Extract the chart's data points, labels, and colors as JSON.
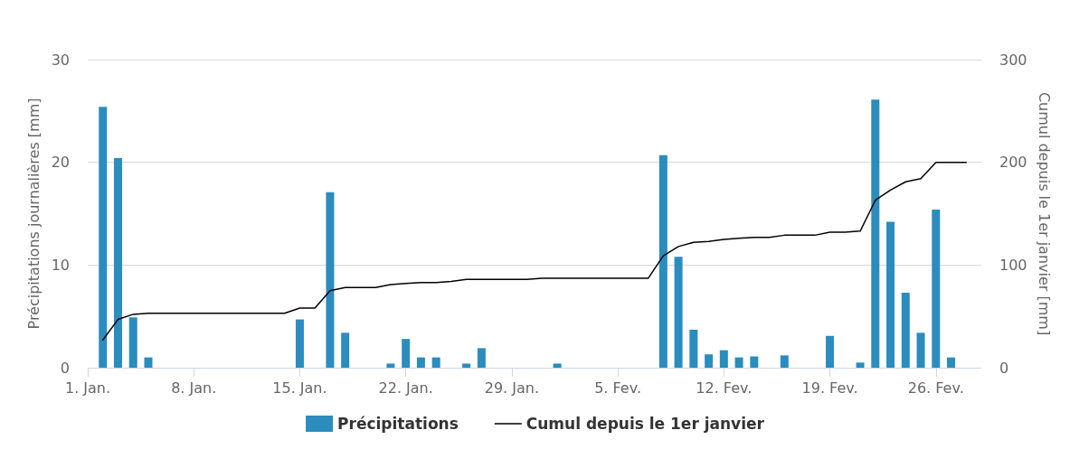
{
  "chart_data": {
    "type": "bar",
    "ylabel": "Précipitations journalières [mm]",
    "y2label": "Cumul depuis le 1er janvier [mm]",
    "xlim": [
      "--01-01",
      "--03-01"
    ],
    "xticks": [
      {
        "value": "--01-01",
        "label": "1. Jan."
      },
      {
        "value": "--01-08",
        "label": "8. Jan."
      },
      {
        "value": "--01-15",
        "label": "15. Jan."
      },
      {
        "value": "--01-22",
        "label": "22. Jan."
      },
      {
        "value": "--01-29",
        "label": "29. Jan."
      },
      {
        "value": "--02-05",
        "label": "5. Fev."
      },
      {
        "value": "--02-12",
        "label": "12. Fev."
      },
      {
        "value": "--02-19",
        "label": "19. Fev."
      },
      {
        "value": "--02-26",
        "label": "26. Fev."
      }
    ],
    "ylim": [
      0,
      30
    ],
    "yticks": [
      0,
      10,
      20,
      30
    ],
    "y2lim": [
      0,
      300
    ],
    "y2ticks": [
      0,
      100,
      200,
      300
    ],
    "grid": "y",
    "legend": "bottom",
    "x": [
      "--01-02",
      "--01-03",
      "--01-04",
      "--01-05",
      "--01-06",
      "--01-07",
      "--01-08",
      "--01-09",
      "--01-10",
      "--01-11",
      "--01-12",
      "--01-13",
      "--01-14",
      "--01-15",
      "--01-16",
      "--01-17",
      "--01-18",
      "--01-19",
      "--01-20",
      "--01-21",
      "--01-22",
      "--01-23",
      "--01-24",
      "--01-25",
      "--01-26",
      "--01-27",
      "--01-28",
      "--01-29",
      "--01-30",
      "--01-31",
      "--02-01",
      "--02-02",
      "--02-03",
      "--02-04",
      "--02-05",
      "--02-06",
      "--02-07",
      "--02-08",
      "--02-09",
      "--02-10",
      "--02-11",
      "--02-12",
      "--02-13",
      "--02-14",
      "--02-15",
      "--02-16",
      "--02-17",
      "--02-18",
      "--02-19",
      "--02-20",
      "--02-21",
      "--02-22",
      "--02-23",
      "--02-24",
      "--02-25",
      "--02-26",
      "--02-27",
      "--02-28"
    ],
    "series": [
      {
        "name": "Précipitations",
        "color": "#2b8cbe",
        "x": [
          "--01-02",
          "--01-03",
          "--01-04",
          "--01-05",
          "--01-15",
          "--01-17",
          "--01-18",
          "--01-21",
          "--01-22",
          "--01-23",
          "--01-24",
          "--01-26",
          "--01-27",
          "--02-01",
          "--02-08",
          "--02-09",
          "--02-10",
          "--02-11",
          "--02-12",
          "--02-13",
          "--02-14",
          "--02-16",
          "--02-19",
          "--02-21",
          "--02-22",
          "--02-23",
          "--02-24",
          "--02-25",
          "--02-26",
          "--02-27"
        ],
        "values": [
          25.4,
          20.4,
          4.9,
          1.0,
          4.7,
          17.1,
          3.4,
          0.4,
          2.8,
          1.0,
          1.0,
          0.4,
          1.9,
          0.4,
          20.7,
          10.8,
          3.7,
          1.3,
          1.7,
          1.0,
          1.1,
          1.2,
          3.1,
          0.5,
          26.1,
          14.2,
          7.3,
          3.4,
          15.4,
          1.0
        ]
      },
      {
        "name": "Cumul depuis le 1er janvier",
        "type": "line",
        "axis": "y2",
        "color": "#000000",
        "marker": "none",
        "line_style": "solid",
        "values": [
          27,
          47,
          52,
          53,
          53,
          53,
          53,
          53,
          53,
          53,
          53,
          53,
          53,
          58,
          58,
          75,
          78,
          78,
          78,
          81,
          82,
          83,
          83,
          84,
          86,
          86,
          86,
          86,
          86,
          87,
          87,
          87,
          87,
          87,
          87,
          87,
          87,
          109,
          118,
          122,
          123,
          125,
          126,
          127,
          127,
          129,
          129,
          129,
          132,
          132,
          133,
          163,
          173,
          181,
          184,
          200,
          200,
          200
        ]
      }
    ]
  }
}
